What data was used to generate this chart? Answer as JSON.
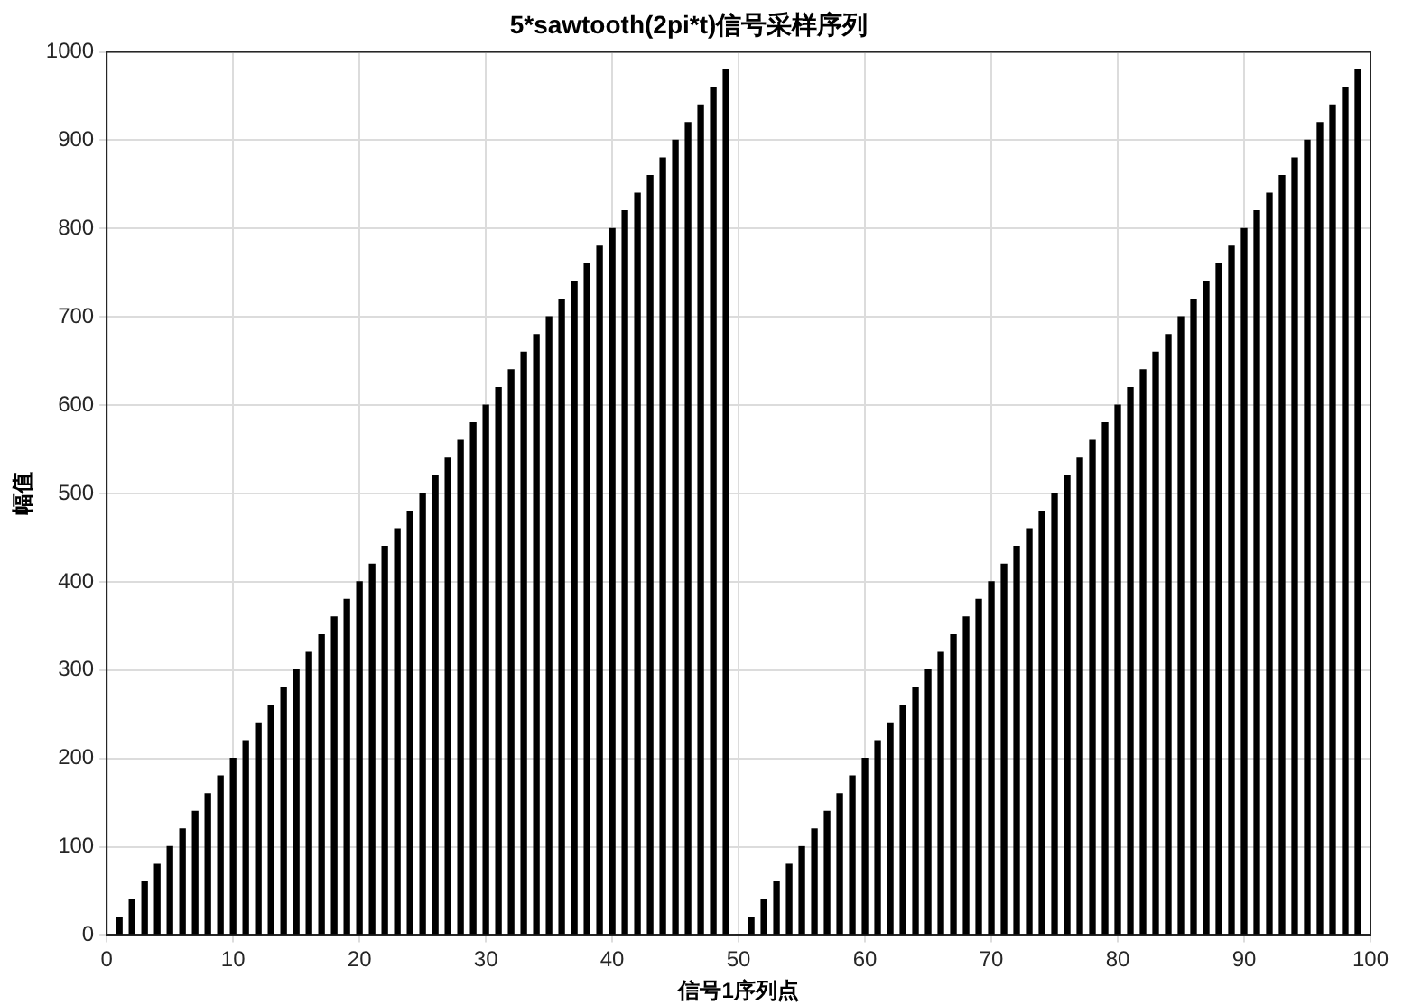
{
  "chart_data": {
    "type": "bar",
    "title": "5*sawtooth(2pi*t)信号采样序列",
    "xlabel": "信号1序列点",
    "ylabel": "幅值",
    "x": [
      0,
      1,
      2,
      3,
      4,
      5,
      6,
      7,
      8,
      9,
      10,
      11,
      12,
      13,
      14,
      15,
      16,
      17,
      18,
      19,
      20,
      21,
      22,
      23,
      24,
      25,
      26,
      27,
      28,
      29,
      30,
      31,
      32,
      33,
      34,
      35,
      36,
      37,
      38,
      39,
      40,
      41,
      42,
      43,
      44,
      45,
      46,
      47,
      48,
      49,
      50,
      51,
      52,
      53,
      54,
      55,
      56,
      57,
      58,
      59,
      60,
      61,
      62,
      63,
      64,
      65,
      66,
      67,
      68,
      69,
      70,
      71,
      72,
      73,
      74,
      75,
      76,
      77,
      78,
      79,
      80,
      81,
      82,
      83,
      84,
      85,
      86,
      87,
      88,
      89,
      90,
      91,
      92,
      93,
      94,
      95,
      96,
      97,
      98,
      99
    ],
    "values": [
      0,
      20,
      40,
      60,
      80,
      100,
      120,
      140,
      160,
      180,
      200,
      220,
      240,
      260,
      280,
      300,
      320,
      340,
      360,
      380,
      400,
      420,
      440,
      460,
      480,
      500,
      520,
      540,
      560,
      580,
      600,
      620,
      640,
      660,
      680,
      700,
      720,
      740,
      760,
      780,
      800,
      820,
      840,
      860,
      880,
      900,
      920,
      940,
      960,
      980,
      0,
      20,
      40,
      60,
      80,
      100,
      120,
      140,
      160,
      180,
      200,
      220,
      240,
      260,
      280,
      300,
      320,
      340,
      360,
      380,
      400,
      420,
      440,
      460,
      480,
      500,
      520,
      540,
      560,
      580,
      600,
      620,
      640,
      660,
      680,
      700,
      720,
      740,
      760,
      780,
      800,
      820,
      840,
      860,
      880,
      900,
      920,
      940,
      960,
      980
    ],
    "color": "#000000",
    "xlim": [
      0,
      100
    ],
    "xticks": [
      0,
      10,
      20,
      30,
      40,
      50,
      60,
      70,
      80,
      90,
      100
    ],
    "ylim": [
      0,
      1000
    ],
    "yticks": [
      0,
      100,
      200,
      300,
      400,
      500,
      600,
      700,
      800,
      900,
      1000
    ],
    "grid": true
  }
}
